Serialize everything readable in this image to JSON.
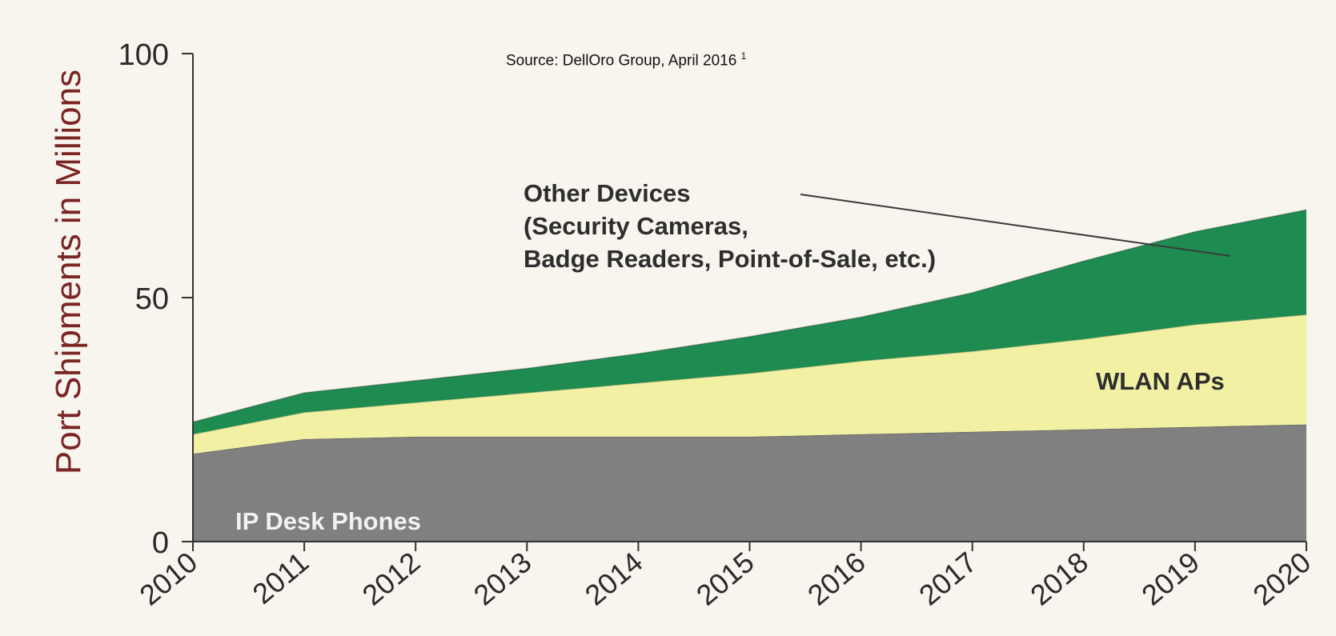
{
  "chart_data": {
    "type": "area",
    "stacked": true,
    "source_note": "Source: DellOro Group, April 2016",
    "source_footnote": "1",
    "ylabel": "Port Shipments in Millions",
    "xlabel": "",
    "x": [
      "2010",
      "2011",
      "2012",
      "2013",
      "2014",
      "2015",
      "2016",
      "2017",
      "2018",
      "2019",
      "2020"
    ],
    "ylim": [
      0,
      100
    ],
    "yticks": [
      "0",
      "50",
      "100"
    ],
    "grid": false,
    "series": [
      {
        "name": "IP Desk Phones",
        "color": "#808080",
        "values": [
          18,
          21,
          21.5,
          21.5,
          21.5,
          21.5,
          22,
          22.5,
          23,
          23.5,
          24
        ]
      },
      {
        "name": "WLAN APs",
        "color": "#f2f0a2",
        "values": [
          4,
          5.5,
          7,
          9,
          11,
          13,
          15,
          16.5,
          18.5,
          21,
          22.5
        ]
      },
      {
        "name": "Other Devices",
        "color": "#1e8c50",
        "values": [
          2.5,
          4,
          4.5,
          5,
          6,
          7.5,
          9,
          12,
          16,
          19,
          21.5
        ]
      }
    ],
    "annotations": {
      "other_devices_lines": [
        "Other Devices",
        "(Security Cameras,",
        "Badge Readers, Point-of-Sale, etc.)"
      ],
      "wlan": "WLAN APs",
      "phones": "IP Desk Phones"
    }
  }
}
